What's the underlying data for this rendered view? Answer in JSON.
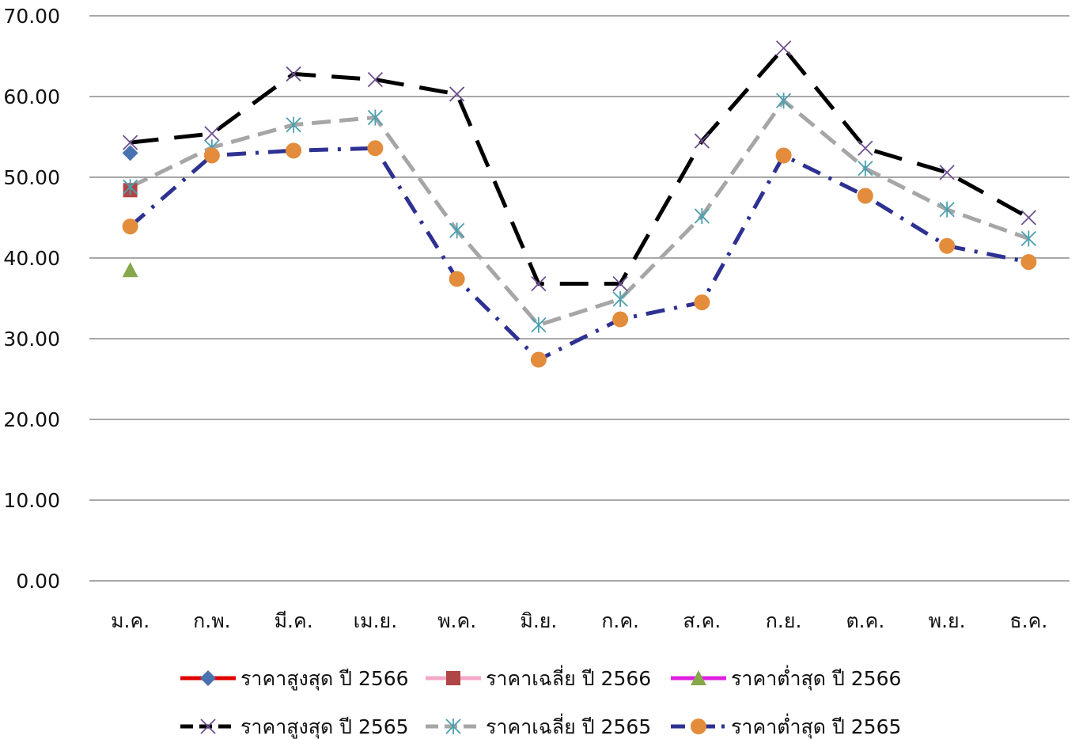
{
  "chart_data": {
    "type": "line",
    "categories": [
      "ม.ค.",
      "ก.พ.",
      "มี.ค.",
      "เม.ย.",
      "พ.ค.",
      "มิ.ย.",
      "ก.ค.",
      "ส.ค.",
      "ก.ย.",
      "ต.ค.",
      "พ.ย.",
      "ธ.ค."
    ],
    "ylim": [
      0,
      70
    ],
    "yticks": [
      "0.00",
      "10.00",
      "20.00",
      "30.00",
      "40.00",
      "50.00",
      "60.00",
      "70.00"
    ],
    "grid": true,
    "legend_position": "bottom",
    "series": [
      {
        "name": "ราคาสูงสุด ปี 2566",
        "values": [
          53.0,
          null,
          null,
          null,
          null,
          null,
          null,
          null,
          null,
          null,
          null,
          null
        ],
        "line_color": "#e00000",
        "marker": "diamond",
        "marker_color": "#4a72b0"
      },
      {
        "name": "ราคาเฉลี่ย ปี 2566",
        "values": [
          48.4,
          null,
          null,
          null,
          null,
          null,
          null,
          null,
          null,
          null,
          null,
          null
        ],
        "line_color": "#f4a7c8",
        "marker": "square",
        "marker_color": "#b04545"
      },
      {
        "name": "ราคาต่ำสุด ปี 2566",
        "values": [
          38.5,
          null,
          null,
          null,
          null,
          null,
          null,
          null,
          null,
          null,
          null,
          null
        ],
        "line_color": "#e020e0",
        "marker": "triangle",
        "marker_color": "#87a84a"
      },
      {
        "name": "ราคาสูงสุด ปี 2565",
        "values": [
          54.3,
          55.4,
          62.8,
          62.1,
          60.3,
          36.8,
          36.8,
          54.5,
          66.0,
          53.6,
          50.6,
          45.0
        ],
        "line_color": "#000000",
        "dash": "long-dash",
        "marker": "x",
        "marker_color": "#6e4f8e"
      },
      {
        "name": "ราคาเฉลี่ย ปี 2565",
        "values": [
          48.8,
          53.7,
          56.5,
          57.4,
          43.4,
          31.7,
          34.9,
          45.2,
          59.5,
          51.1,
          46.0,
          42.4
        ],
        "line_color": "#a6a6a6",
        "dash": "dash",
        "marker": "asterisk",
        "marker_color": "#4aa0b0"
      },
      {
        "name": "ราคาต่ำสุด ปี 2565",
        "values": [
          43.9,
          52.7,
          53.3,
          53.6,
          37.4,
          27.4,
          32.4,
          34.5,
          52.7,
          47.7,
          41.5,
          39.5
        ],
        "line_color": "#2e3192",
        "dash": "dash-dot",
        "marker": "circle",
        "marker_color": "#e38c3c"
      }
    ]
  }
}
